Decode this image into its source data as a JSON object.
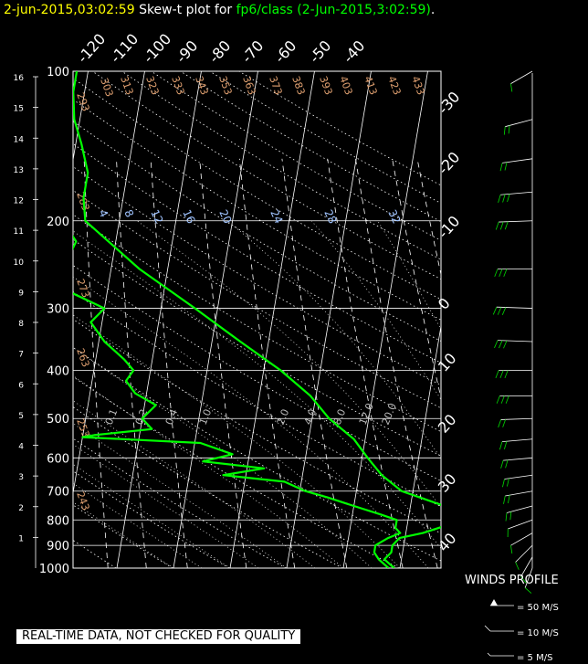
{
  "header": {
    "datetime": "2-jun-2015,03:02:59",
    "skew_t_label": "Skew-t plot for",
    "source": "fp6/class (2-Jun-2015,3:02:59)",
    "period": "."
  },
  "disclaimer": "REAL-TIME DATA, NOT CHECKED FOR QUALITY",
  "winds_profile": {
    "title": "WINDS PROFILE",
    "legend": [
      "= 50 M/S",
      "= 10 M/S",
      "= 5 M/S"
    ]
  },
  "colors": {
    "background": "#000000",
    "grid": "#ffffff",
    "sounding": "#00ff00",
    "theta_labels": "#e0a070",
    "mixing_labels": "#9fc3ff",
    "title_date": "#ffff00",
    "title_source": "#00ff00"
  },
  "chart_data": {
    "type": "line",
    "pressure_axis": {
      "ylim": [
        1000,
        100
      ],
      "scale": "log",
      "labels": [
        "100",
        "200",
        "300",
        "400",
        "500",
        "600",
        "700",
        "800",
        "900",
        "1000"
      ]
    },
    "height_axis": {
      "labels": [
        "1",
        "2",
        "3",
        "4",
        "5",
        "6",
        "7",
        "8",
        "9",
        "10",
        "11",
        "12",
        "13",
        "14",
        "15",
        "16"
      ]
    },
    "temperature_labels_top": [
      "-120",
      "-110",
      "-100",
      "-90",
      "-80",
      "-70",
      "-60",
      "-50",
      "-40"
    ],
    "temperature_labels_right": [
      "-30",
      "-20",
      "-10",
      "0",
      "10",
      "20",
      "30",
      "40"
    ],
    "theta_labels": [
      "293",
      "303",
      "313",
      "323",
      "333",
      "343",
      "353",
      "363",
      "373",
      "383",
      "393",
      "403",
      "413",
      "423",
      "433",
      "283",
      "273",
      "263",
      "253",
      "243"
    ],
    "mixing_ratio_labels_upper": [
      "4",
      "8",
      "12",
      "16",
      "20",
      "24",
      "28",
      "32"
    ],
    "mixing_ratio_labels_lower": [
      "0.1",
      "0.2",
      "0.4",
      "1.0",
      "2.0",
      "4.0",
      "8.0",
      "12.0",
      "20.0"
    ],
    "series": [
      {
        "key": "temperature",
        "points": [
          [
            1000,
            9
          ],
          [
            960,
            7
          ],
          [
            930,
            8
          ],
          [
            900,
            8
          ],
          [
            870,
            9
          ],
          [
            850,
            13
          ],
          [
            820,
            17
          ],
          [
            800,
            20
          ],
          [
            780,
            19
          ],
          [
            750,
            16
          ],
          [
            700,
            8
          ],
          [
            650,
            4
          ],
          [
            600,
            1
          ],
          [
            550,
            -2
          ],
          [
            500,
            -7
          ],
          [
            450,
            -11
          ],
          [
            400,
            -17
          ],
          [
            350,
            -25
          ],
          [
            300,
            -34
          ],
          [
            250,
            -45
          ],
          [
            200,
            -56
          ],
          [
            180,
            -57
          ],
          [
            160,
            -57
          ],
          [
            140,
            -59
          ],
          [
            125,
            -61
          ],
          [
            110,
            -62
          ],
          [
            100,
            -62
          ]
        ]
      },
      {
        "key": "dewpoint",
        "points": [
          [
            1000,
            8
          ],
          [
            960,
            6
          ],
          [
            930,
            5
          ],
          [
            900,
            5
          ],
          [
            870,
            7
          ],
          [
            850,
            9
          ],
          [
            830,
            8
          ],
          [
            800,
            8
          ],
          [
            780,
            5
          ],
          [
            750,
            0
          ],
          [
            720,
            -5
          ],
          [
            700,
            -9
          ],
          [
            670,
            -13
          ],
          [
            650,
            -24
          ],
          [
            630,
            -17
          ],
          [
            610,
            -28
          ],
          [
            590,
            -23
          ],
          [
            560,
            -29
          ],
          [
            545,
            -50
          ],
          [
            540,
            -48
          ],
          [
            525,
            -38
          ],
          [
            500,
            -40
          ],
          [
            470,
            -38
          ],
          [
            445,
            -42
          ],
          [
            420,
            -44
          ],
          [
            400,
            -43
          ],
          [
            380,
            -45
          ],
          [
            350,
            -49
          ],
          [
            320,
            -52
          ],
          [
            300,
            -50
          ],
          [
            280,
            -56
          ],
          [
            260,
            -59
          ],
          [
            240,
            -58
          ],
          [
            220,
            -57
          ],
          [
            200,
            -60
          ],
          [
            185,
            -62
          ],
          [
            160,
            -65
          ],
          [
            150,
            -78
          ],
          [
            140,
            -88
          ],
          [
            125,
            -88
          ],
          [
            112,
            -85
          ],
          [
            100,
            -84
          ]
        ]
      }
    ],
    "winds": [
      {
        "p": 1000,
        "dir": 200,
        "spd": 5
      },
      {
        "p": 950,
        "dir": 210,
        "spd": 8
      },
      {
        "p": 900,
        "dir": 225,
        "spd": 10
      },
      {
        "p": 850,
        "dir": 240,
        "spd": 12
      },
      {
        "p": 800,
        "dir": 250,
        "spd": 14
      },
      {
        "p": 750,
        "dir": 255,
        "spd": 15
      },
      {
        "p": 700,
        "dir": 260,
        "spd": 17
      },
      {
        "p": 650,
        "dir": 262,
        "spd": 18
      },
      {
        "p": 600,
        "dir": 265,
        "spd": 20
      },
      {
        "p": 550,
        "dir": 265,
        "spd": 22
      },
      {
        "p": 500,
        "dir": 268,
        "spd": 24
      },
      {
        "p": 450,
        "dir": 270,
        "spd": 26
      },
      {
        "p": 400,
        "dir": 270,
        "spd": 28
      },
      {
        "p": 350,
        "dir": 272,
        "spd": 30
      },
      {
        "p": 300,
        "dir": 272,
        "spd": 32
      },
      {
        "p": 250,
        "dir": 270,
        "spd": 30
      },
      {
        "p": 200,
        "dir": 268,
        "spd": 28
      },
      {
        "p": 175,
        "dir": 265,
        "spd": 25
      },
      {
        "p": 150,
        "dir": 262,
        "spd": 22
      },
      {
        "p": 125,
        "dir": 255,
        "spd": 18
      },
      {
        "p": 100,
        "dir": 240,
        "spd": 12
      }
    ],
    "grid": true
  }
}
